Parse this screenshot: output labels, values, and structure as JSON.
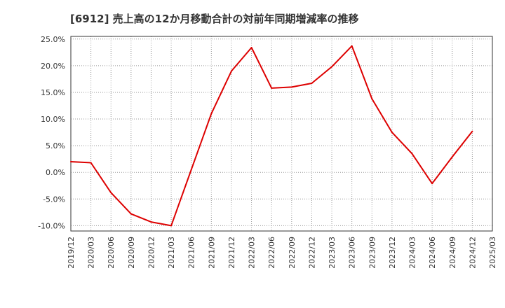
{
  "chart_data": {
    "type": "line",
    "title": "[6912]  売上高の12か月移動合計の対前年同期増減率の推移",
    "xlabel": "",
    "ylabel": "",
    "x": [
      "2019/12",
      "2020/03",
      "2020/06",
      "2020/09",
      "2020/12",
      "2021/03",
      "2021/06",
      "2021/09",
      "2021/12",
      "2022/03",
      "2022/06",
      "2022/09",
      "2022/12",
      "2023/03",
      "2023/06",
      "2023/09",
      "2023/12",
      "2024/03",
      "2024/06",
      "2024/09",
      "2024/12",
      "2025/03"
    ],
    "series": [
      {
        "name": "売上高の12か月移動合計の対前年同期増減率",
        "color": "#dd0000",
        "values": [
          2.0,
          1.8,
          -3.8,
          -7.8,
          -9.3,
          -10.0,
          0.5,
          11.0,
          19.0,
          23.4,
          15.8,
          16.0,
          16.7,
          19.8,
          23.7,
          13.8,
          7.5,
          3.5,
          -2.1,
          2.9,
          7.7,
          null
        ]
      }
    ],
    "yticks": [
      25,
      20,
      15,
      10,
      5,
      0,
      -5,
      -10
    ],
    "ytick_labels": [
      "25.0%",
      "20.0%",
      "15.0%",
      "10.0%",
      "5.0%",
      "0.0%",
      "-5.0%",
      "-10.0%"
    ],
    "ylim": [
      -11,
      25.5
    ],
    "grid": true,
    "legend": "none"
  }
}
